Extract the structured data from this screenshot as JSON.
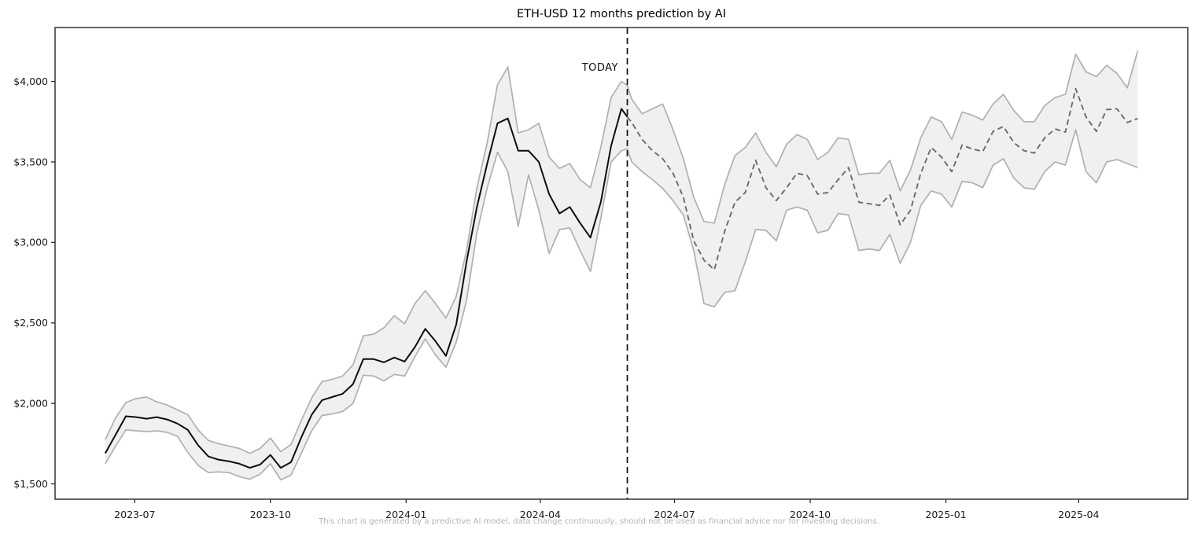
{
  "title": "ETH-USD 12 months prediction by AI",
  "today_label": "TODAY",
  "footer": "This chart is generated by a predictive AI model, data change continuously, should not be used as financial advice nor for investing decisions.",
  "colors": {
    "background": "#ffffff",
    "historical_line": "#0d0d0d",
    "prediction_line": "#6b6b6b",
    "band_fill": "#f0f0f0",
    "band_edge": "#b0b0b0",
    "spine": "#262626",
    "tick_label": "#1a1a1a",
    "today_line": "#111111",
    "footer_text": "#b3b3b3"
  },
  "chart_data": {
    "type": "line",
    "title": "ETH-USD 12 months prediction by AI",
    "grid": false,
    "legend": "none",
    "ylim": [
      1405,
      4335
    ],
    "xlim": [
      "2023-05-08",
      "2025-06-14"
    ],
    "today": "2024-05-30",
    "today_annotation": "TODAY",
    "y_axis": {
      "ticks": [
        {
          "value": 1500,
          "label": "$1,500"
        },
        {
          "value": 2000,
          "label": "$2,000"
        },
        {
          "value": 2500,
          "label": "$2,500"
        },
        {
          "value": 3000,
          "label": "$3,000"
        },
        {
          "value": 3500,
          "label": "$3,500"
        },
        {
          "value": 4000,
          "label": "$4,000"
        }
      ]
    },
    "x_axis": {
      "ticks": [
        {
          "date": "2023-07-01",
          "label": "2023-07"
        },
        {
          "date": "2023-10-01",
          "label": "2023-10"
        },
        {
          "date": "2024-01-01",
          "label": "2024-01"
        },
        {
          "date": "2024-04-01",
          "label": "2024-04"
        },
        {
          "date": "2024-07-01",
          "label": "2024-07"
        },
        {
          "date": "2024-10-01",
          "label": "2024-10"
        },
        {
          "date": "2025-01-01",
          "label": "2025-01"
        },
        {
          "date": "2025-04-01",
          "label": "2025-04"
        }
      ]
    },
    "series": [
      {
        "name": "historical",
        "style": "solid",
        "dates": [
          "2023-06-11",
          "2023-06-18",
          "2023-06-25",
          "2023-07-02",
          "2023-07-09",
          "2023-07-16",
          "2023-07-23",
          "2023-07-30",
          "2023-08-06",
          "2023-08-13",
          "2023-08-20",
          "2023-08-27",
          "2023-09-03",
          "2023-09-10",
          "2023-09-17",
          "2023-09-24",
          "2023-10-01",
          "2023-10-08",
          "2023-10-15",
          "2023-10-22",
          "2023-10-29",
          "2023-11-05",
          "2023-11-12",
          "2023-11-19",
          "2023-11-26",
          "2023-12-03",
          "2023-12-10",
          "2023-12-17",
          "2023-12-24",
          "2023-12-31",
          "2024-01-07",
          "2024-01-14",
          "2024-01-21",
          "2024-01-28",
          "2024-02-04",
          "2024-02-11",
          "2024-02-18",
          "2024-02-25",
          "2024-03-03",
          "2024-03-10",
          "2024-03-17",
          "2024-03-24",
          "2024-03-31",
          "2024-04-07",
          "2024-04-14",
          "2024-04-21",
          "2024-04-28",
          "2024-05-05",
          "2024-05-12",
          "2024-05-19",
          "2024-05-26",
          "2024-05-30"
        ],
        "values": [
          1690,
          1805,
          1920,
          1915,
          1905,
          1915,
          1900,
          1875,
          1835,
          1740,
          1670,
          1650,
          1640,
          1625,
          1600,
          1620,
          1680,
          1600,
          1635,
          1790,
          1930,
          2020,
          2040,
          2060,
          2120,
          2275,
          2275,
          2255,
          2285,
          2260,
          2350,
          2463,
          2385,
          2295,
          2490,
          2880,
          3220,
          3490,
          3740,
          3770,
          3570,
          3570,
          3500,
          3300,
          3180,
          3220,
          3120,
          3030,
          3250,
          3600,
          3830,
          3780
        ],
        "upper": [
          1775,
          1910,
          2005,
          2030,
          2040,
          2010,
          1990,
          1960,
          1930,
          1835,
          1770,
          1750,
          1735,
          1720,
          1690,
          1720,
          1785,
          1700,
          1745,
          1895,
          2035,
          2135,
          2150,
          2170,
          2240,
          2420,
          2430,
          2470,
          2545,
          2495,
          2620,
          2700,
          2620,
          2530,
          2665,
          2950,
          3340,
          3620,
          3980,
          4090,
          3680,
          3700,
          3740,
          3530,
          3460,
          3490,
          3390,
          3340,
          3590,
          3900,
          4000,
          3975
        ],
        "lower": [
          1625,
          1735,
          1835,
          1830,
          1825,
          1830,
          1820,
          1795,
          1695,
          1615,
          1570,
          1575,
          1570,
          1545,
          1530,
          1560,
          1625,
          1525,
          1555,
          1690,
          1830,
          1925,
          1935,
          1950,
          2000,
          2175,
          2170,
          2140,
          2180,
          2170,
          2290,
          2400,
          2300,
          2225,
          2380,
          2640,
          3060,
          3340,
          3560,
          3440,
          3100,
          3420,
          3200,
          2930,
          3080,
          3090,
          2950,
          2820,
          3150,
          3500,
          3570,
          3580
        ]
      },
      {
        "name": "prediction",
        "style": "dashed",
        "dates": [
          "2024-05-30",
          "2024-06-02",
          "2024-06-09",
          "2024-06-16",
          "2024-06-23",
          "2024-06-30",
          "2024-07-07",
          "2024-07-14",
          "2024-07-21",
          "2024-07-28",
          "2024-08-04",
          "2024-08-11",
          "2024-08-18",
          "2024-08-25",
          "2024-09-01",
          "2024-09-08",
          "2024-09-15",
          "2024-09-22",
          "2024-09-29",
          "2024-10-06",
          "2024-10-13",
          "2024-10-20",
          "2024-10-27",
          "2024-11-03",
          "2024-11-10",
          "2024-11-17",
          "2024-11-24",
          "2024-12-01",
          "2024-12-08",
          "2024-12-15",
          "2024-12-22",
          "2024-12-29",
          "2025-01-05",
          "2025-01-12",
          "2025-01-19",
          "2025-01-26",
          "2025-02-02",
          "2025-02-09",
          "2025-02-16",
          "2025-02-23",
          "2025-03-02",
          "2025-03-09",
          "2025-03-16",
          "2025-03-23",
          "2025-03-30",
          "2025-04-06",
          "2025-04-13",
          "2025-04-20",
          "2025-04-27",
          "2025-05-04",
          "2025-05-11"
        ],
        "values": [
          3780,
          3745,
          3640,
          3570,
          3520,
          3430,
          3280,
          3010,
          2890,
          2830,
          3070,
          3250,
          3310,
          3510,
          3340,
          3260,
          3340,
          3430,
          3415,
          3300,
          3310,
          3390,
          3465,
          3250,
          3240,
          3230,
          3295,
          3110,
          3200,
          3430,
          3590,
          3530,
          3440,
          3605,
          3580,
          3565,
          3690,
          3720,
          3620,
          3570,
          3555,
          3650,
          3705,
          3685,
          3955,
          3780,
          3690,
          3825,
          3830,
          3745,
          3770
        ],
        "upper": [
          3975,
          3890,
          3800,
          3830,
          3860,
          3700,
          3520,
          3280,
          3130,
          3120,
          3360,
          3540,
          3590,
          3680,
          3560,
          3470,
          3610,
          3670,
          3640,
          3515,
          3560,
          3650,
          3640,
          3420,
          3430,
          3430,
          3510,
          3320,
          3450,
          3650,
          3780,
          3750,
          3640,
          3810,
          3790,
          3760,
          3860,
          3920,
          3820,
          3750,
          3750,
          3850,
          3900,
          3920,
          4170,
          4060,
          4030,
          4100,
          4050,
          3960,
          4190
        ],
        "lower": [
          3580,
          3500,
          3440,
          3390,
          3335,
          3260,
          3170,
          2950,
          2620,
          2600,
          2690,
          2700,
          2880,
          3080,
          3075,
          3010,
          3200,
          3220,
          3200,
          3060,
          3075,
          3180,
          3170,
          2950,
          2960,
          2950,
          3050,
          2870,
          3000,
          3230,
          3320,
          3300,
          3220,
          3380,
          3370,
          3340,
          3480,
          3520,
          3400,
          3340,
          3330,
          3440,
          3500,
          3480,
          3700,
          3440,
          3370,
          3500,
          3515,
          3490,
          3465
        ]
      }
    ]
  }
}
